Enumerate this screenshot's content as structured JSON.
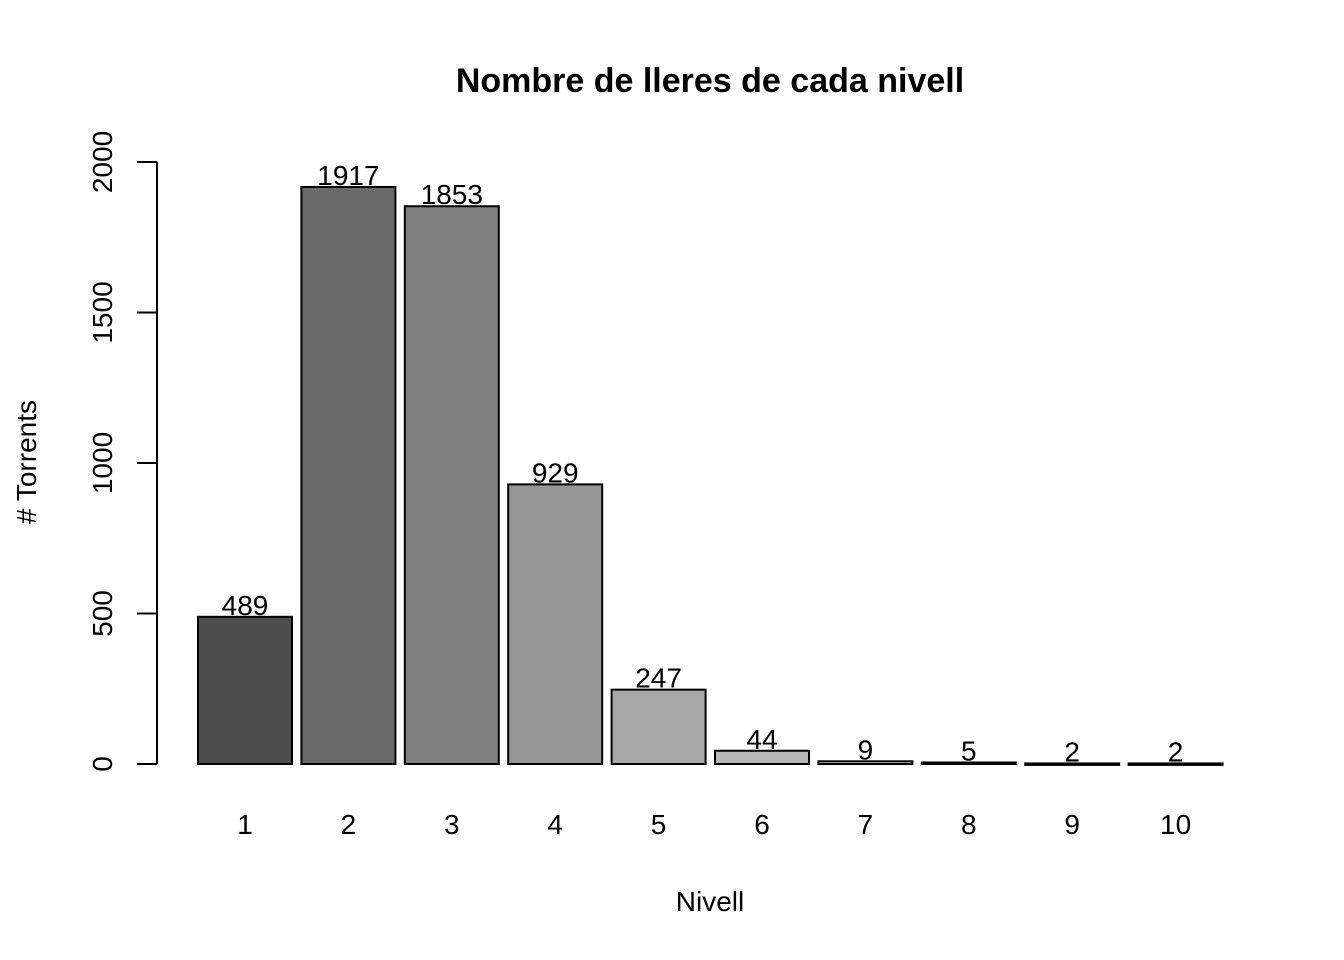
{
  "chart_data": {
    "type": "bar",
    "title": "Nombre de lleres de cada nivell",
    "xlabel": "Nivell",
    "ylabel": "# Torrents",
    "categories": [
      "1",
      "2",
      "3",
      "4",
      "5",
      "6",
      "7",
      "8",
      "9",
      "10"
    ],
    "values": [
      489,
      1917,
      1853,
      929,
      247,
      44,
      9,
      5,
      2,
      2
    ],
    "data_labels": [
      "489",
      "1917",
      "1853",
      "929",
      "247",
      "44",
      "9",
      "5",
      "2",
      "2"
    ],
    "bar_colors": [
      "#4d4d4d",
      "#696969",
      "#808080",
      "#969696",
      "#a8a8a8",
      "#b8b8b8",
      "#c7c7c7",
      "#d4d4d4",
      "#e0e0e0",
      "#ebebeb"
    ],
    "ylim": [
      0,
      2000
    ],
    "yticks": [
      0,
      500,
      1000,
      1500,
      2000
    ],
    "ytick_labels": [
      "0",
      "500",
      "1000",
      "1500",
      "2000"
    ],
    "grid": false,
    "legend": "none"
  }
}
